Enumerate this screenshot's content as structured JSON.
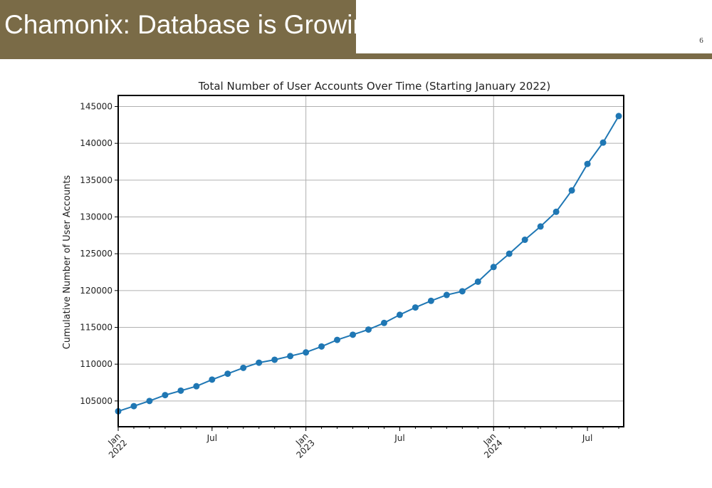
{
  "slide": {
    "title": "Chamonix: Database is Growing",
    "page_number": "6",
    "brand_color": "#7a6b47"
  },
  "chart_data": {
    "type": "line",
    "title": "Total Number of User Accounts Over Time (Starting January 2022)",
    "xlabel": "",
    "ylabel": "Cumulative Number of User Accounts",
    "x": [
      "2022-01",
      "2022-02",
      "2022-03",
      "2022-04",
      "2022-05",
      "2022-06",
      "2022-07",
      "2022-08",
      "2022-09",
      "2022-10",
      "2022-11",
      "2022-12",
      "2023-01",
      "2023-02",
      "2023-03",
      "2023-04",
      "2023-05",
      "2023-06",
      "2023-07",
      "2023-08",
      "2023-09",
      "2023-10",
      "2023-11",
      "2023-12",
      "2024-01",
      "2024-02",
      "2024-03",
      "2024-04",
      "2024-05",
      "2024-06",
      "2024-07",
      "2024-08",
      "2024-09"
    ],
    "series": [
      {
        "values": [
          103600,
          104300,
          105000,
          105800,
          106400,
          107000,
          107900,
          108700,
          109500,
          110200,
          110600,
          111100,
          111600,
          112400,
          113300,
          114000,
          114700,
          115600,
          116700,
          117700,
          118600,
          119400,
          119900,
          121200,
          123200,
          125000,
          126900,
          128700,
          130700,
          133600,
          137200,
          140100,
          143700
        ],
        "color": "#1f77b4"
      }
    ],
    "xlim": [
      "2022-01",
      "2024-09"
    ],
    "ylim": [
      101500,
      146500
    ],
    "yticks": [
      105000,
      110000,
      115000,
      120000,
      125000,
      130000,
      135000,
      140000,
      145000
    ],
    "xticks": [
      {
        "date": "2022-01",
        "label": "Jan\n2022"
      },
      {
        "date": "2022-07",
        "label": "Jul"
      },
      {
        "date": "2023-01",
        "label": "Jan\n2023"
      },
      {
        "date": "2023-07",
        "label": "Jul"
      },
      {
        "date": "2024-01",
        "label": "Jan\n2024"
      },
      {
        "date": "2024-07",
        "label": "Jul"
      }
    ],
    "grid": true,
    "marker": "circle"
  }
}
